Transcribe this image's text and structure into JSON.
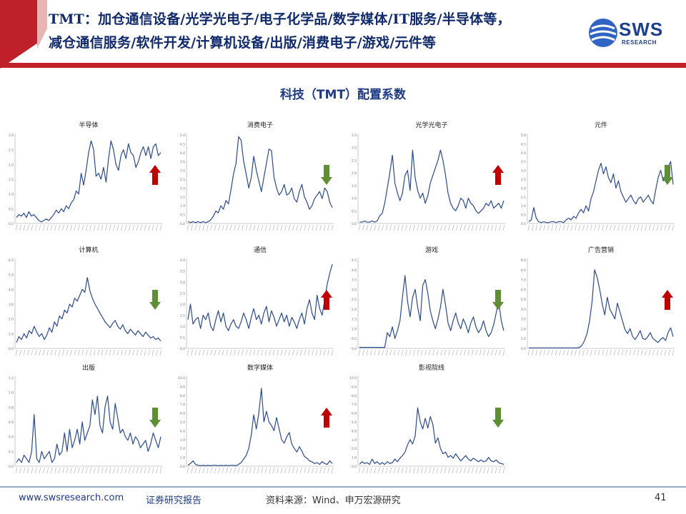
{
  "header": {
    "line1": "TMT：加仓通信设备/光学光电子/电子化学品/数字媒体/IT服务/半导体等，",
    "line2": "减仓通信服务/软件开发/计算机设备/出版/消费电子/游戏/元件等",
    "logo_text": "SWS",
    "logo_sub": "RESEARCH"
  },
  "main_title": "科技（TMT）配置系数",
  "colors": {
    "line": "#2b4a8c",
    "up": "#c00000",
    "down": "#5f8f34",
    "header_red": "#c0202a",
    "brand": "#1d3f8f"
  },
  "chart_data": [
    {
      "type": "line",
      "title": "半导体",
      "ylim": [
        0,
        3.0
      ],
      "yticks": [
        "0.0",
        "0.5",
        "1.0",
        "1.5",
        "2.0",
        "2.5",
        "3.0"
      ],
      "arrow": "up",
      "values": [
        0.2,
        0.3,
        0.25,
        0.35,
        0.2,
        0.4,
        0.25,
        0.3,
        0.2,
        0.1,
        0.05,
        0.1,
        0.15,
        0.1,
        0.2,
        0.3,
        0.45,
        0.35,
        0.5,
        0.4,
        0.6,
        0.5,
        0.7,
        0.8,
        1.1,
        1.0,
        1.7,
        1.3,
        1.8,
        2.4,
        2.8,
        2.5,
        1.6,
        1.7,
        1.5,
        1.9,
        1.4,
        2.2,
        2.8,
        2.5,
        2.0,
        1.8,
        2.3,
        2.5,
        2.2,
        2.7,
        2.4,
        2.3,
        1.9,
        2.1,
        2.4,
        2.6,
        2.3,
        2.6,
        2.2,
        2.6,
        2.7,
        2.3,
        2.4
      ]
    },
    {
      "type": "line",
      "title": "消费电子",
      "ylim": [
        0,
        5.0
      ],
      "yticks": [
        "0.0",
        "0.5",
        "1.0",
        "1.5",
        "2.0",
        "2.5",
        "3.0",
        "3.5",
        "4.0",
        "4.5",
        "5.0"
      ],
      "arrow": "down",
      "values": [
        0.1,
        0.05,
        0.1,
        0.05,
        0.1,
        0.05,
        0.1,
        0.05,
        0.1,
        0.2,
        0.4,
        0.7,
        0.6,
        1.0,
        0.8,
        1.3,
        1.1,
        1.9,
        2.8,
        3.4,
        4.9,
        4.7,
        3.5,
        2.8,
        2.0,
        2.6,
        3.8,
        3.0,
        2.4,
        1.8,
        2.6,
        3.4,
        4.2,
        4.1,
        2.6,
        2.0,
        1.6,
        1.8,
        2.2,
        1.6,
        1.7,
        2.0,
        1.4,
        1.2,
        1.8,
        2.2,
        1.5,
        1.2,
        0.8,
        1.0,
        1.4,
        1.6,
        1.8,
        1.4,
        2.0,
        1.8,
        1.2,
        0.9
      ]
    },
    {
      "type": "line",
      "title": "光学光电子",
      "ylim": [
        0,
        3.5
      ],
      "yticks": [
        "0.0",
        "0.5",
        "1.0",
        "1.5",
        "2.0",
        "2.5",
        "3.0",
        "3.5"
      ],
      "arrow": "up",
      "values": [
        0.05,
        0.05,
        0.1,
        0.05,
        0.05,
        0.1,
        0.05,
        0.1,
        0.3,
        0.4,
        0.8,
        1.4,
        2.0,
        2.7,
        1.6,
        1.2,
        0.9,
        1.2,
        1.9,
        2.1,
        1.3,
        2.9,
        1.8,
        1.3,
        1.0,
        1.2,
        0.8,
        1.1,
        1.6,
        1.9,
        2.2,
        2.5,
        2.9,
        2.5,
        1.9,
        1.2,
        0.8,
        0.6,
        0.5,
        0.7,
        1.0,
        0.9,
        0.6,
        1.0,
        0.8,
        0.7,
        0.5,
        0.4,
        0.5,
        0.6,
        0.8,
        0.7,
        0.9,
        0.6,
        0.7,
        0.8,
        0.6,
        0.9
      ]
    },
    {
      "type": "line",
      "title": "元件",
      "ylim": [
        0,
        5.0
      ],
      "yticks": [
        "0.0",
        "0.5",
        "1.0",
        "1.5",
        "2.0",
        "2.5",
        "3.0",
        "3.5",
        "4.0",
        "4.5",
        "5.0"
      ],
      "arrow": "down",
      "values": [
        0.1,
        0.2,
        0.9,
        0.3,
        0.1,
        0.05,
        0.1,
        0.05,
        0.05,
        0.1,
        0.1,
        0.05,
        0.1,
        0.1,
        0.05,
        0.2,
        0.3,
        0.2,
        0.4,
        0.3,
        0.6,
        0.8,
        0.6,
        1.0,
        0.7,
        1.4,
        1.8,
        2.4,
        3.0,
        3.4,
        2.8,
        3.2,
        2.6,
        2.3,
        2.8,
        2.0,
        2.4,
        1.8,
        1.5,
        1.2,
        1.4,
        1.6,
        1.3,
        1.1,
        1.4,
        1.5,
        1.2,
        1.4,
        1.6,
        1.3,
        1.1,
        1.9,
        2.6,
        3.0,
        2.4,
        2.8,
        3.2,
        3.5,
        2.2
      ]
    },
    {
      "type": "line",
      "title": "计算机",
      "ylim": [
        0,
        6.0
      ],
      "yticks": [
        "0.0",
        "1.0",
        "2.0",
        "3.0",
        "4.0",
        "5.0",
        "6.0"
      ],
      "arrow": "down",
      "values": [
        0.4,
        0.8,
        0.6,
        1.0,
        0.7,
        1.2,
        1.0,
        1.5,
        1.1,
        0.8,
        1.0,
        0.6,
        0.9,
        1.4,
        1.1,
        1.8,
        1.5,
        2.2,
        2.0,
        2.6,
        2.4,
        3.0,
        2.8,
        3.4,
        3.2,
        3.6,
        4.0,
        3.8,
        4.8,
        3.9,
        3.4,
        3.0,
        2.7,
        2.4,
        2.1,
        1.8,
        1.6,
        1.4,
        1.7,
        1.9,
        1.5,
        1.3,
        1.6,
        1.2,
        1.0,
        1.3,
        1.1,
        0.9,
        1.2,
        1.0,
        0.8,
        1.1,
        0.9,
        0.7,
        0.8,
        0.6,
        0.7,
        0.5
      ]
    },
    {
      "type": "line",
      "title": "通信",
      "ylim": [
        0,
        4.0
      ],
      "yticks": [
        "0.0",
        "0.5",
        "1.0",
        "1.5",
        "2.0",
        "2.5",
        "3.0",
        "3.5",
        "4.0"
      ],
      "arrow": "up",
      "values": [
        1.3,
        2.0,
        1.1,
        1.3,
        1.4,
        0.9,
        1.5,
        1.3,
        1.6,
        1.0,
        0.8,
        1.3,
        1.7,
        1.2,
        1.6,
        1.0,
        0.8,
        1.1,
        1.3,
        1.0,
        0.9,
        1.2,
        1.6,
        1.3,
        0.9,
        1.4,
        1.8,
        1.3,
        1.5,
        1.1,
        1.6,
        1.9,
        1.2,
        1.7,
        1.4,
        1.0,
        1.3,
        1.6,
        1.2,
        1.5,
        1.0,
        1.4,
        1.2,
        0.9,
        1.3,
        1.6,
        1.1,
        1.8,
        2.2,
        1.6,
        1.3,
        2.4,
        1.8,
        1.5,
        2.2,
        2.9,
        3.4,
        3.8
      ]
    },
    {
      "type": "line",
      "title": "游戏",
      "ylim": [
        0,
        4.5
      ],
      "yticks": [
        "0.0",
        "0.5",
        "1.0",
        "1.5",
        "2.0",
        "2.5",
        "3.0",
        "3.5",
        "4.0",
        "4.5"
      ],
      "arrow": "down",
      "values": [
        0.05,
        0.05,
        0.05,
        0.05,
        0.05,
        0.05,
        0.05,
        0.05,
        0.05,
        0.05,
        0.05,
        0.8,
        0.6,
        1.1,
        0.5,
        0.9,
        1.4,
        2.6,
        3.7,
        2.4,
        1.6,
        2.6,
        3.0,
        2.1,
        1.4,
        3.2,
        3.5,
        2.8,
        1.9,
        1.4,
        1.0,
        1.5,
        2.1,
        3.0,
        2.2,
        1.3,
        0.9,
        1.4,
        1.8,
        1.3,
        1.0,
        1.5,
        1.2,
        0.8,
        1.3,
        1.6,
        1.1,
        0.8,
        1.0,
        1.4,
        0.9,
        0.6,
        0.8,
        1.2,
        1.8,
        2.4,
        1.4,
        0.9
      ]
    },
    {
      "type": "line",
      "title": "广告营销",
      "ylim": [
        0,
        9.0
      ],
      "yticks": [
        "0.0",
        "1.0",
        "2.0",
        "3.0",
        "4.0",
        "5.0",
        "6.0",
        "7.0",
        "8.0",
        "9.0"
      ],
      "arrow": "up",
      "values": [
        0.05,
        0.05,
        0.05,
        0.05,
        0.05,
        0.05,
        0.05,
        0.05,
        0.05,
        0.05,
        0.05,
        0.05,
        0.05,
        0.05,
        0.05,
        0.05,
        0.05,
        0.05,
        0.05,
        0.05,
        0.1,
        0.3,
        0.8,
        1.5,
        2.8,
        4.8,
        8.0,
        7.2,
        6.0,
        4.5,
        3.4,
        5.2,
        4.0,
        3.5,
        3.0,
        4.6,
        3.7,
        2.8,
        1.9,
        1.5,
        2.0,
        1.2,
        0.9,
        1.3,
        1.8,
        1.0,
        0.9,
        1.2,
        1.6,
        1.0,
        0.8,
        0.6,
        0.9,
        1.1,
        0.8,
        1.6,
        2.1,
        1.2
      ]
    },
    {
      "type": "line",
      "title": "出版",
      "ylim": [
        0,
        1.2
      ],
      "yticks": [
        "0.0",
        "0.2",
        "0.4",
        "0.6",
        "0.8",
        "1.0",
        "1.2"
      ],
      "arrow": "down",
      "values": [
        0.05,
        0.1,
        0.05,
        0.15,
        0.1,
        0.05,
        0.2,
        0.7,
        0.1,
        0.05,
        0.2,
        0.1,
        0.15,
        0.2,
        0.05,
        0.1,
        0.3,
        0.15,
        0.2,
        0.45,
        0.2,
        0.5,
        0.25,
        0.35,
        0.5,
        0.3,
        0.6,
        0.35,
        0.45,
        0.55,
        0.9,
        0.7,
        0.95,
        0.55,
        0.45,
        0.8,
        0.95,
        0.6,
        0.5,
        0.85,
        0.65,
        0.45,
        0.5,
        0.4,
        0.35,
        0.45,
        0.3,
        0.4,
        0.35,
        0.25,
        0.3,
        0.35,
        0.2,
        0.3,
        0.45,
        0.35,
        0.25,
        0.4
      ]
    },
    {
      "type": "line",
      "title": "数字媒体",
      "ylim": [
        0,
        10.0
      ],
      "yticks": [
        "0.0",
        "1.0",
        "2.0",
        "3.0",
        "4.0",
        "5.0",
        "6.0",
        "7.0",
        "8.0",
        "9.0",
        "10.0"
      ],
      "arrow": "up",
      "values": [
        0.1,
        0.3,
        0.6,
        0.2,
        0.1,
        0.05,
        0.1,
        0.05,
        0.1,
        0.05,
        0.1,
        0.1,
        0.05,
        0.1,
        0.05,
        0.1,
        0.05,
        0.1,
        0.1,
        0.05,
        0.2,
        0.4,
        0.8,
        1.2,
        2.0,
        3.5,
        5.8,
        4.2,
        6.0,
        8.8,
        5.0,
        6.2,
        5.0,
        4.6,
        4.0,
        5.5,
        4.2,
        3.0,
        2.6,
        3.3,
        3.8,
        2.5,
        2.0,
        1.6,
        2.2,
        1.7,
        1.1,
        0.9,
        0.6,
        0.5,
        0.3,
        0.4,
        0.2,
        0.5,
        0.3,
        0.2,
        0.6,
        0.3
      ]
    },
    {
      "type": "line",
      "title": "影视院线",
      "ylim": [
        0,
        10.0
      ],
      "yticks": [
        "0.0",
        "1.0",
        "2.0",
        "3.0",
        "4.0",
        "5.0",
        "6.0",
        "7.0",
        "8.0",
        "9.0",
        "10.0"
      ],
      "arrow": "down",
      "values": [
        0.2,
        0.5,
        0.3,
        0.4,
        0.2,
        0.8,
        0.3,
        0.5,
        0.2,
        0.4,
        0.2,
        0.5,
        0.3,
        0.4,
        0.8,
        0.5,
        0.9,
        1.2,
        1.6,
        2.4,
        3.0,
        2.5,
        3.4,
        6.6,
        5.0,
        4.2,
        5.4,
        4.3,
        5.6,
        4.7,
        2.6,
        3.2,
        2.0,
        1.4,
        1.6,
        1.0,
        1.2,
        0.9,
        1.4,
        1.0,
        0.6,
        0.9,
        1.2,
        0.8,
        0.6,
        0.9,
        0.7,
        0.5,
        0.7,
        0.5,
        0.6,
        1.0,
        0.6,
        0.5,
        0.7,
        0.4,
        0.3,
        0.2
      ]
    }
  ],
  "footer": {
    "site": "www.swsresearch.com",
    "report": "证券研究报告",
    "source": "资料来源：Wind、申万宏源研究",
    "page": "41"
  }
}
